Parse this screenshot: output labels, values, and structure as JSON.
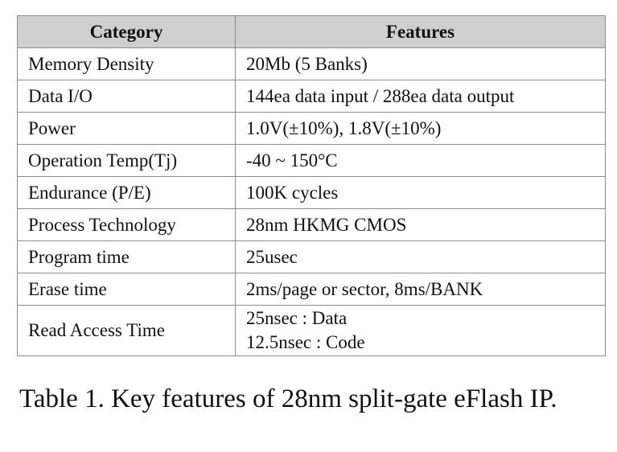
{
  "table": {
    "headers": {
      "category": "Category",
      "features": "Features"
    },
    "rows": [
      {
        "category": "Memory Density",
        "features": [
          "20Mb (5 Banks)"
        ]
      },
      {
        "category": "Data I/O",
        "features": [
          "144ea data input / 288ea data output"
        ]
      },
      {
        "category": "Power",
        "features": [
          "1.0V(±10%), 1.8V(±10%)"
        ]
      },
      {
        "category": "Operation Temp(Tj)",
        "features": [
          "-40 ~ 150°C"
        ]
      },
      {
        "category": "Endurance (P/E)",
        "features": [
          "100K cycles"
        ]
      },
      {
        "category": "Process Technology",
        "features": [
          "28nm HKMG CMOS"
        ]
      },
      {
        "category": "Program time",
        "features": [
          "25usec"
        ]
      },
      {
        "category": "Erase time",
        "features": [
          "2ms/page or sector, 8ms/BANK"
        ]
      },
      {
        "category": "Read Access Time",
        "features": [
          "25nsec : Data",
          "12.5nsec : Code"
        ]
      }
    ]
  },
  "caption": "Table 1. Key features of 28nm split-gate eFlash IP."
}
